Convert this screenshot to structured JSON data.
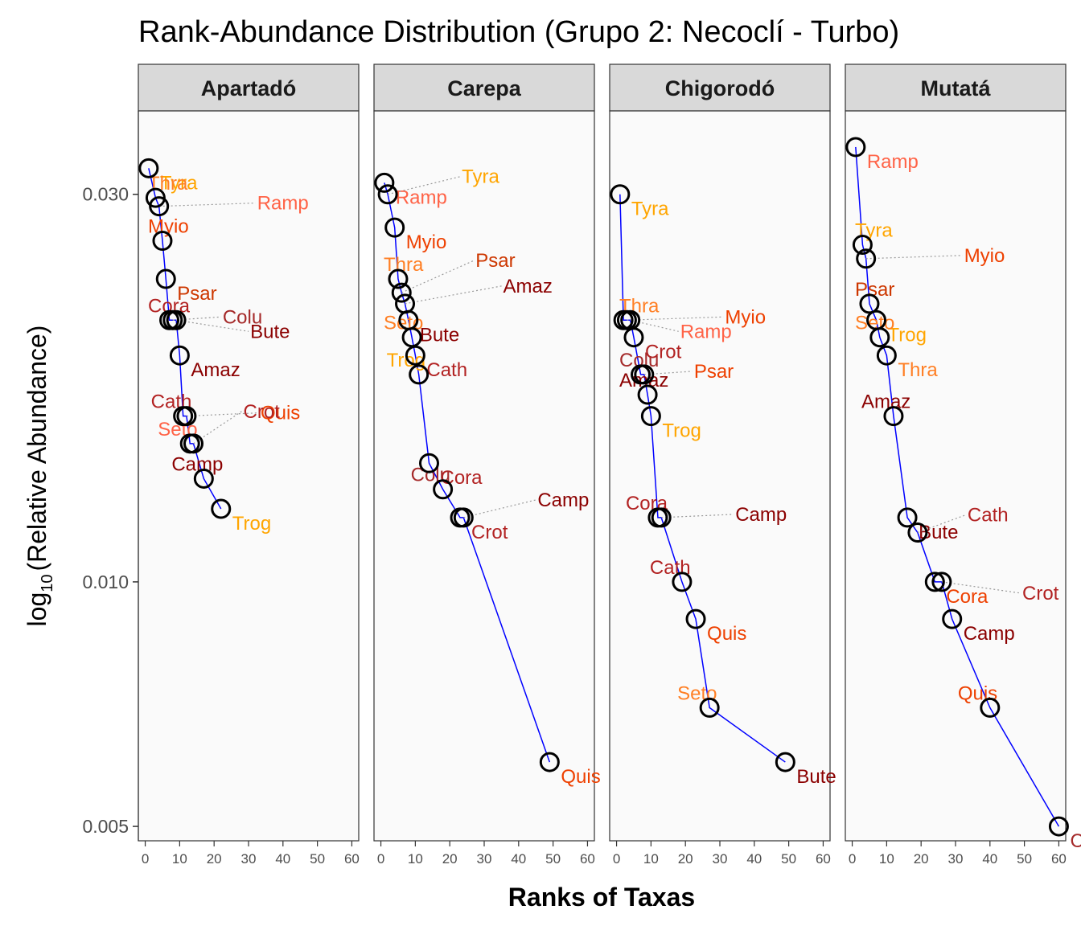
{
  "chart_data": {
    "type": "scatter",
    "title": "Rank-Abundance Distribution (Grupo 2: Necoclí - Turbo)",
    "xlabel": "Ranks of Taxas",
    "ylabel": "log10 (Relative Abundance)",
    "ylabel_parts": {
      "log": "log",
      "sub": "10",
      "open": "(",
      "text": "Relative Abundance",
      "close": ")"
    },
    "y_scale": "log",
    "ylim": [
      0.0048,
      0.038
    ],
    "xlim": [
      -2,
      62
    ],
    "x_ticks": [
      0,
      10,
      20,
      30,
      40,
      50,
      60
    ],
    "x_tick_labels": [
      "0",
      "10",
      "20",
      "30",
      "40",
      "50",
      "60"
    ],
    "y_ticks": [
      0.03,
      0.01,
      0.005
    ],
    "y_tick_labels": [
      "0.030",
      "0.010",
      "0.005"
    ],
    "grid": false,
    "line_color": "#0000ff",
    "panels": [
      {
        "name": "Apartadó",
        "points": [
          {
            "label": "Tyra",
            "x": 1,
            "y": 0.0323,
            "color": "#ffa500"
          },
          {
            "label": "Thra",
            "x": 3,
            "y": 0.0297,
            "color": "#ff7f24"
          },
          {
            "label": "Ramp",
            "x": 4,
            "y": 0.029,
            "color": "#ff6347"
          },
          {
            "label": "Myio",
            "x": 5,
            "y": 0.0263,
            "color": "#ee4000"
          },
          {
            "label": "Psar",
            "x": 6,
            "y": 0.0236,
            "color": "#cd3700"
          },
          {
            "label": "Cora",
            "x": 7,
            "y": 0.021,
            "color": "#b22222"
          },
          {
            "label": "Colu",
            "x": 8,
            "y": 0.021,
            "color": "#a52a2a"
          },
          {
            "label": "Bute",
            "x": 9,
            "y": 0.021,
            "color": "#8b0000"
          },
          {
            "label": "Amaz",
            "x": 10,
            "y": 0.019,
            "color": "#8b0000"
          },
          {
            "label": "Cath",
            "x": 11,
            "y": 0.016,
            "color": "#b22222"
          },
          {
            "label": "Quis",
            "x": 12,
            "y": 0.016,
            "color": "#ee4000"
          },
          {
            "label": "Seto",
            "x": 13,
            "y": 0.0148,
            "color": "#ff6347"
          },
          {
            "label": "Crot",
            "x": 14,
            "y": 0.0148,
            "color": "#b22222"
          },
          {
            "label": "Camp",
            "x": 17,
            "y": 0.0134,
            "color": "#8b0000"
          },
          {
            "label": "Trog",
            "x": 22,
            "y": 0.0123,
            "color": "#ffa500"
          }
        ]
      },
      {
        "name": "Carepa",
        "points": [
          {
            "label": "Ramp",
            "x": 1,
            "y": 0.031,
            "color": "#ff6347"
          },
          {
            "label": "Tyra",
            "x": 2,
            "y": 0.03,
            "color": "#ffa500"
          },
          {
            "label": "Myio",
            "x": 4,
            "y": 0.0273,
            "color": "#ee4000"
          },
          {
            "label": "Thra",
            "x": 5,
            "y": 0.0236,
            "color": "#ff7f24"
          },
          {
            "label": "Psar",
            "x": 6,
            "y": 0.0227,
            "color": "#cd3700"
          },
          {
            "label": "Amaz",
            "x": 7,
            "y": 0.022,
            "color": "#8b0000"
          },
          {
            "label": "Bute",
            "x": 8,
            "y": 0.021,
            "color": "#8b0000"
          },
          {
            "label": "Seto",
            "x": 9,
            "y": 0.02,
            "color": "#ff7f24"
          },
          {
            "label": "Cath",
            "x": 10,
            "y": 0.019,
            "color": "#b22222"
          },
          {
            "label": "Trog",
            "x": 11,
            "y": 0.018,
            "color": "#ffa500"
          },
          {
            "label": "Cora",
            "x": 14,
            "y": 0.014,
            "color": "#b22222"
          },
          {
            "label": "Colu",
            "x": 18,
            "y": 0.013,
            "color": "#a52a2a"
          },
          {
            "label": "Crot",
            "x": 23,
            "y": 0.012,
            "color": "#b22222"
          },
          {
            "label": "Camp",
            "x": 24,
            "y": 0.012,
            "color": "#8b0000"
          },
          {
            "label": "Quis",
            "x": 49,
            "y": 0.006,
            "color": "#ee4000"
          }
        ]
      },
      {
        "name": "Chigorodó",
        "points": [
          {
            "label": "Tyra",
            "x": 1,
            "y": 0.03,
            "color": "#ffa500"
          },
          {
            "label": "Thra",
            "x": 2,
            "y": 0.021,
            "color": "#ff7f24"
          },
          {
            "label": "Myio",
            "x": 3,
            "y": 0.021,
            "color": "#ee4000"
          },
          {
            "label": "Ramp",
            "x": 4,
            "y": 0.021,
            "color": "#ff6347"
          },
          {
            "label": "Crot",
            "x": 5,
            "y": 0.02,
            "color": "#b22222"
          },
          {
            "label": "Colu",
            "x": 7,
            "y": 0.018,
            "color": "#a52a2a"
          },
          {
            "label": "Psar",
            "x": 8,
            "y": 0.018,
            "color": "#ee4000"
          },
          {
            "label": "Amaz",
            "x": 9,
            "y": 0.017,
            "color": "#8b0000"
          },
          {
            "label": "Trog",
            "x": 10,
            "y": 0.016,
            "color": "#ffa500"
          },
          {
            "label": "Cora",
            "x": 12,
            "y": 0.012,
            "color": "#b22222"
          },
          {
            "label": "Camp",
            "x": 13,
            "y": 0.012,
            "color": "#8b0000"
          },
          {
            "label": "Cath",
            "x": 19,
            "y": 0.01,
            "color": "#b22222"
          },
          {
            "label": "Quis",
            "x": 23,
            "y": 0.009,
            "color": "#ee4000"
          },
          {
            "label": "Seto",
            "x": 27,
            "y": 0.007,
            "color": "#ff7f24"
          },
          {
            "label": "Bute",
            "x": 49,
            "y": 0.006,
            "color": "#8b0000"
          }
        ]
      },
      {
        "name": "Mutatá",
        "points": [
          {
            "label": "Ramp",
            "x": 1,
            "y": 0.0343,
            "color": "#ff6347"
          },
          {
            "label": "Tyra",
            "x": 3,
            "y": 0.026,
            "color": "#ffa500"
          },
          {
            "label": "Myio",
            "x": 4,
            "y": 0.025,
            "color": "#ee4000"
          },
          {
            "label": "Psar",
            "x": 5,
            "y": 0.022,
            "color": "#cd3700"
          },
          {
            "label": "Trog",
            "x": 7,
            "y": 0.021,
            "color": "#ffa500"
          },
          {
            "label": "Seto",
            "x": 8,
            "y": 0.02,
            "color": "#ff7f24"
          },
          {
            "label": "Thra",
            "x": 10,
            "y": 0.019,
            "color": "#ff7f24"
          },
          {
            "label": "Amaz",
            "x": 12,
            "y": 0.016,
            "color": "#8b0000"
          },
          {
            "label": "Bute",
            "x": 16,
            "y": 0.012,
            "color": "#8b0000"
          },
          {
            "label": "Cath",
            "x": 19,
            "y": 0.0115,
            "color": "#b22222"
          },
          {
            "label": "Cora",
            "x": 24,
            "y": 0.01,
            "color": "#ee4000"
          },
          {
            "label": "Crot",
            "x": 26,
            "y": 0.01,
            "color": "#b22222"
          },
          {
            "label": "Camp",
            "x": 29,
            "y": 0.009,
            "color": "#8b0000"
          },
          {
            "label": "Quis",
            "x": 40,
            "y": 0.007,
            "color": "#ee4000"
          },
          {
            "label": "Colu",
            "x": 60,
            "y": 0.005,
            "color": "#a52a2a"
          }
        ]
      }
    ]
  }
}
